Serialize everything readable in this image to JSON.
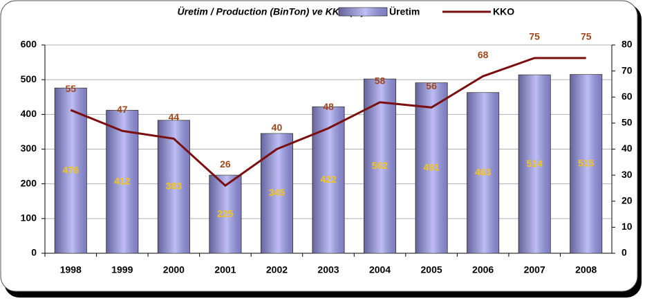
{
  "chart_data": {
    "type": "bar",
    "title": "Üretim / Production (BinTon)  ve KKO (%)",
    "categories": [
      "1998",
      "1999",
      "2000",
      "2001",
      "2002",
      "2003",
      "2004",
      "2005",
      "2006",
      "2007",
      "2008"
    ],
    "series": [
      {
        "name": "Üretim",
        "type": "bar",
        "color": "#9b9bf0",
        "label_color": "#f5c518",
        "values": [
          476,
          412,
          383,
          225,
          345,
          422,
          502,
          491,
          463,
          514,
          515
        ]
      },
      {
        "name": "KKO",
        "type": "line",
        "axis": "y2",
        "color": "#7a0f0f",
        "label_color": "#a0461a",
        "values": [
          55,
          47,
          44,
          26,
          40,
          48,
          58,
          56,
          68,
          75,
          75
        ]
      }
    ],
    "ylim": [
      0,
      600
    ],
    "yticks": [
      0,
      100,
      200,
      300,
      400,
      500,
      600
    ],
    "y2lim": [
      0,
      80
    ],
    "y2ticks": [
      0,
      10,
      20,
      30,
      40,
      50,
      60,
      70,
      80
    ],
    "grid": true
  }
}
